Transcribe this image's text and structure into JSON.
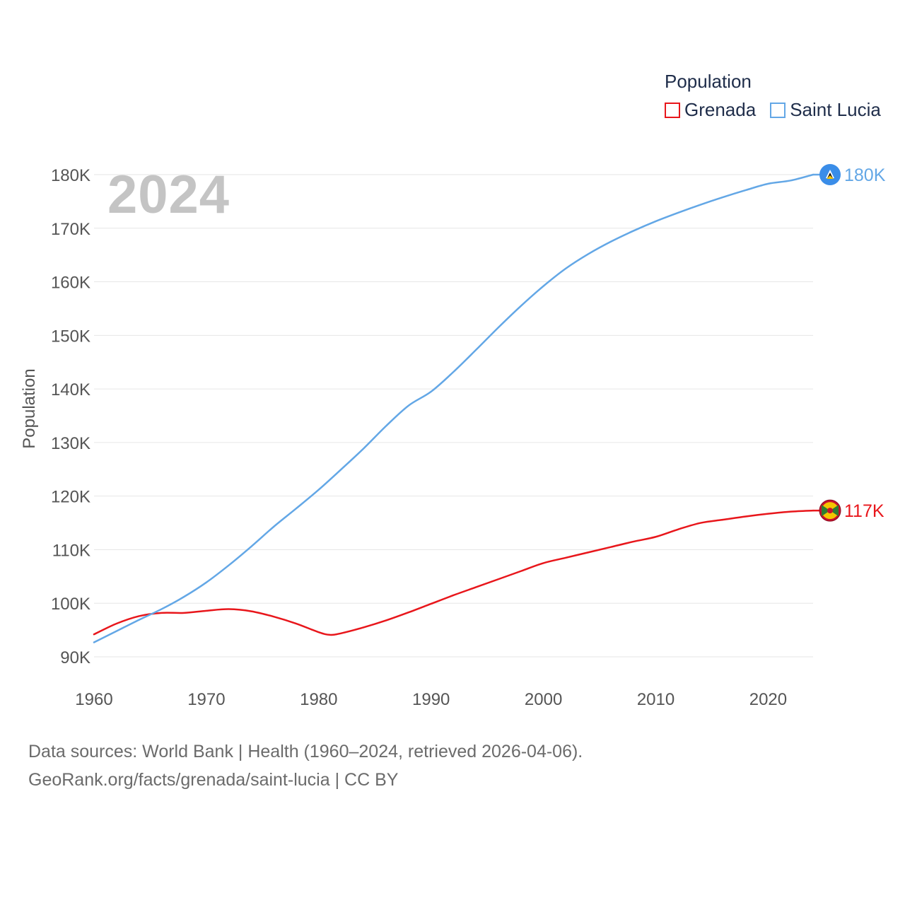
{
  "legend": {
    "title": "Population",
    "items": [
      {
        "name": "Grenada",
        "color": "#e8161b"
      },
      {
        "name": "Saint Lucia",
        "color": "#63a7e6"
      }
    ]
  },
  "year_watermark": "2024",
  "ylabel": "Population",
  "footer": {
    "line1": "Data sources: World Bank | Health (1960–2024, retrieved 2026-04-06).",
    "line2": "GeoRank.org/facts/grenada/saint-lucia | CC BY"
  },
  "chart_data": {
    "type": "line",
    "title": "Population",
    "xlabel": "",
    "ylabel": "Population",
    "xlim": [
      1960,
      2024
    ],
    "ylim": [
      88000,
      182000
    ],
    "x_ticks": [
      1960,
      1970,
      1980,
      1990,
      2000,
      2010,
      2020
    ],
    "x_tick_labels": [
      "1960",
      "1970",
      "1980",
      "1990",
      "2000",
      "2010",
      "2020"
    ],
    "y_ticks": [
      90000,
      100000,
      110000,
      120000,
      130000,
      140000,
      150000,
      160000,
      170000,
      180000
    ],
    "y_tick_labels": [
      "90K",
      "100K",
      "110K",
      "120K",
      "130K",
      "140K",
      "150K",
      "160K",
      "170K",
      "180K"
    ],
    "grid": true,
    "legend_position": "top-right",
    "series": [
      {
        "name": "Grenada",
        "color": "#e8161b",
        "end_label": "117K",
        "x": [
          1960,
          1962,
          1964,
          1966,
          1968,
          1970,
          1972,
          1974,
          1976,
          1978,
          1980,
          1981,
          1982,
          1984,
          1986,
          1988,
          1990,
          1992,
          1994,
          1996,
          1998,
          2000,
          2002,
          2004,
          2006,
          2008,
          2010,
          2012,
          2014,
          2016,
          2018,
          2020,
          2022,
          2024
        ],
        "values": [
          94200,
          96200,
          97600,
          98200,
          98200,
          98600,
          98900,
          98500,
          97500,
          96200,
          94600,
          94100,
          94400,
          95500,
          96800,
          98300,
          99900,
          101500,
          103000,
          104500,
          106000,
          107500,
          108500,
          109500,
          110500,
          111500,
          112400,
          113800,
          115000,
          115600,
          116200,
          116700,
          117100,
          117300
        ]
      },
      {
        "name": "Saint Lucia",
        "color": "#63a7e6",
        "end_label": "180K",
        "x": [
          1960,
          1962,
          1964,
          1966,
          1968,
          1970,
          1972,
          1974,
          1976,
          1978,
          1980,
          1982,
          1984,
          1986,
          1988,
          1990,
          1992,
          1994,
          1996,
          1998,
          2000,
          2002,
          2004,
          2006,
          2008,
          2010,
          2012,
          2014,
          2016,
          2018,
          2020,
          2022,
          2024
        ],
        "values": [
          92700,
          94800,
          96900,
          98900,
          101200,
          103900,
          107100,
          110600,
          114300,
          117700,
          121200,
          125000,
          128900,
          133100,
          136900,
          139500,
          143200,
          147300,
          151500,
          155500,
          159200,
          162500,
          165200,
          167500,
          169500,
          171300,
          172900,
          174400,
          175800,
          177100,
          178300,
          178900,
          180000
        ]
      }
    ]
  }
}
